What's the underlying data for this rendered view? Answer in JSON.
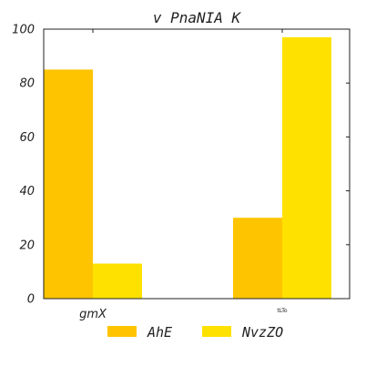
{
  "chart_data": {
    "type": "bar",
    "title": "v  PnaNIA K",
    "xlabel": "",
    "ylabel": "",
    "categories": [
      "gmX",
      "tLTo"
    ],
    "series": [
      {
        "name": "AhE",
        "values": [
          85,
          30
        ],
        "color": "#FFC400"
      },
      {
        "name": "NvzZO",
        "values": [
          13,
          97
        ],
        "color": "#FFE100"
      }
    ],
    "ylim": [
      0,
      100
    ],
    "yticks": [
      "0",
      "20",
      "40",
      "60",
      "80",
      "100"
    ],
    "grid": false,
    "legend_position": "bottom"
  }
}
